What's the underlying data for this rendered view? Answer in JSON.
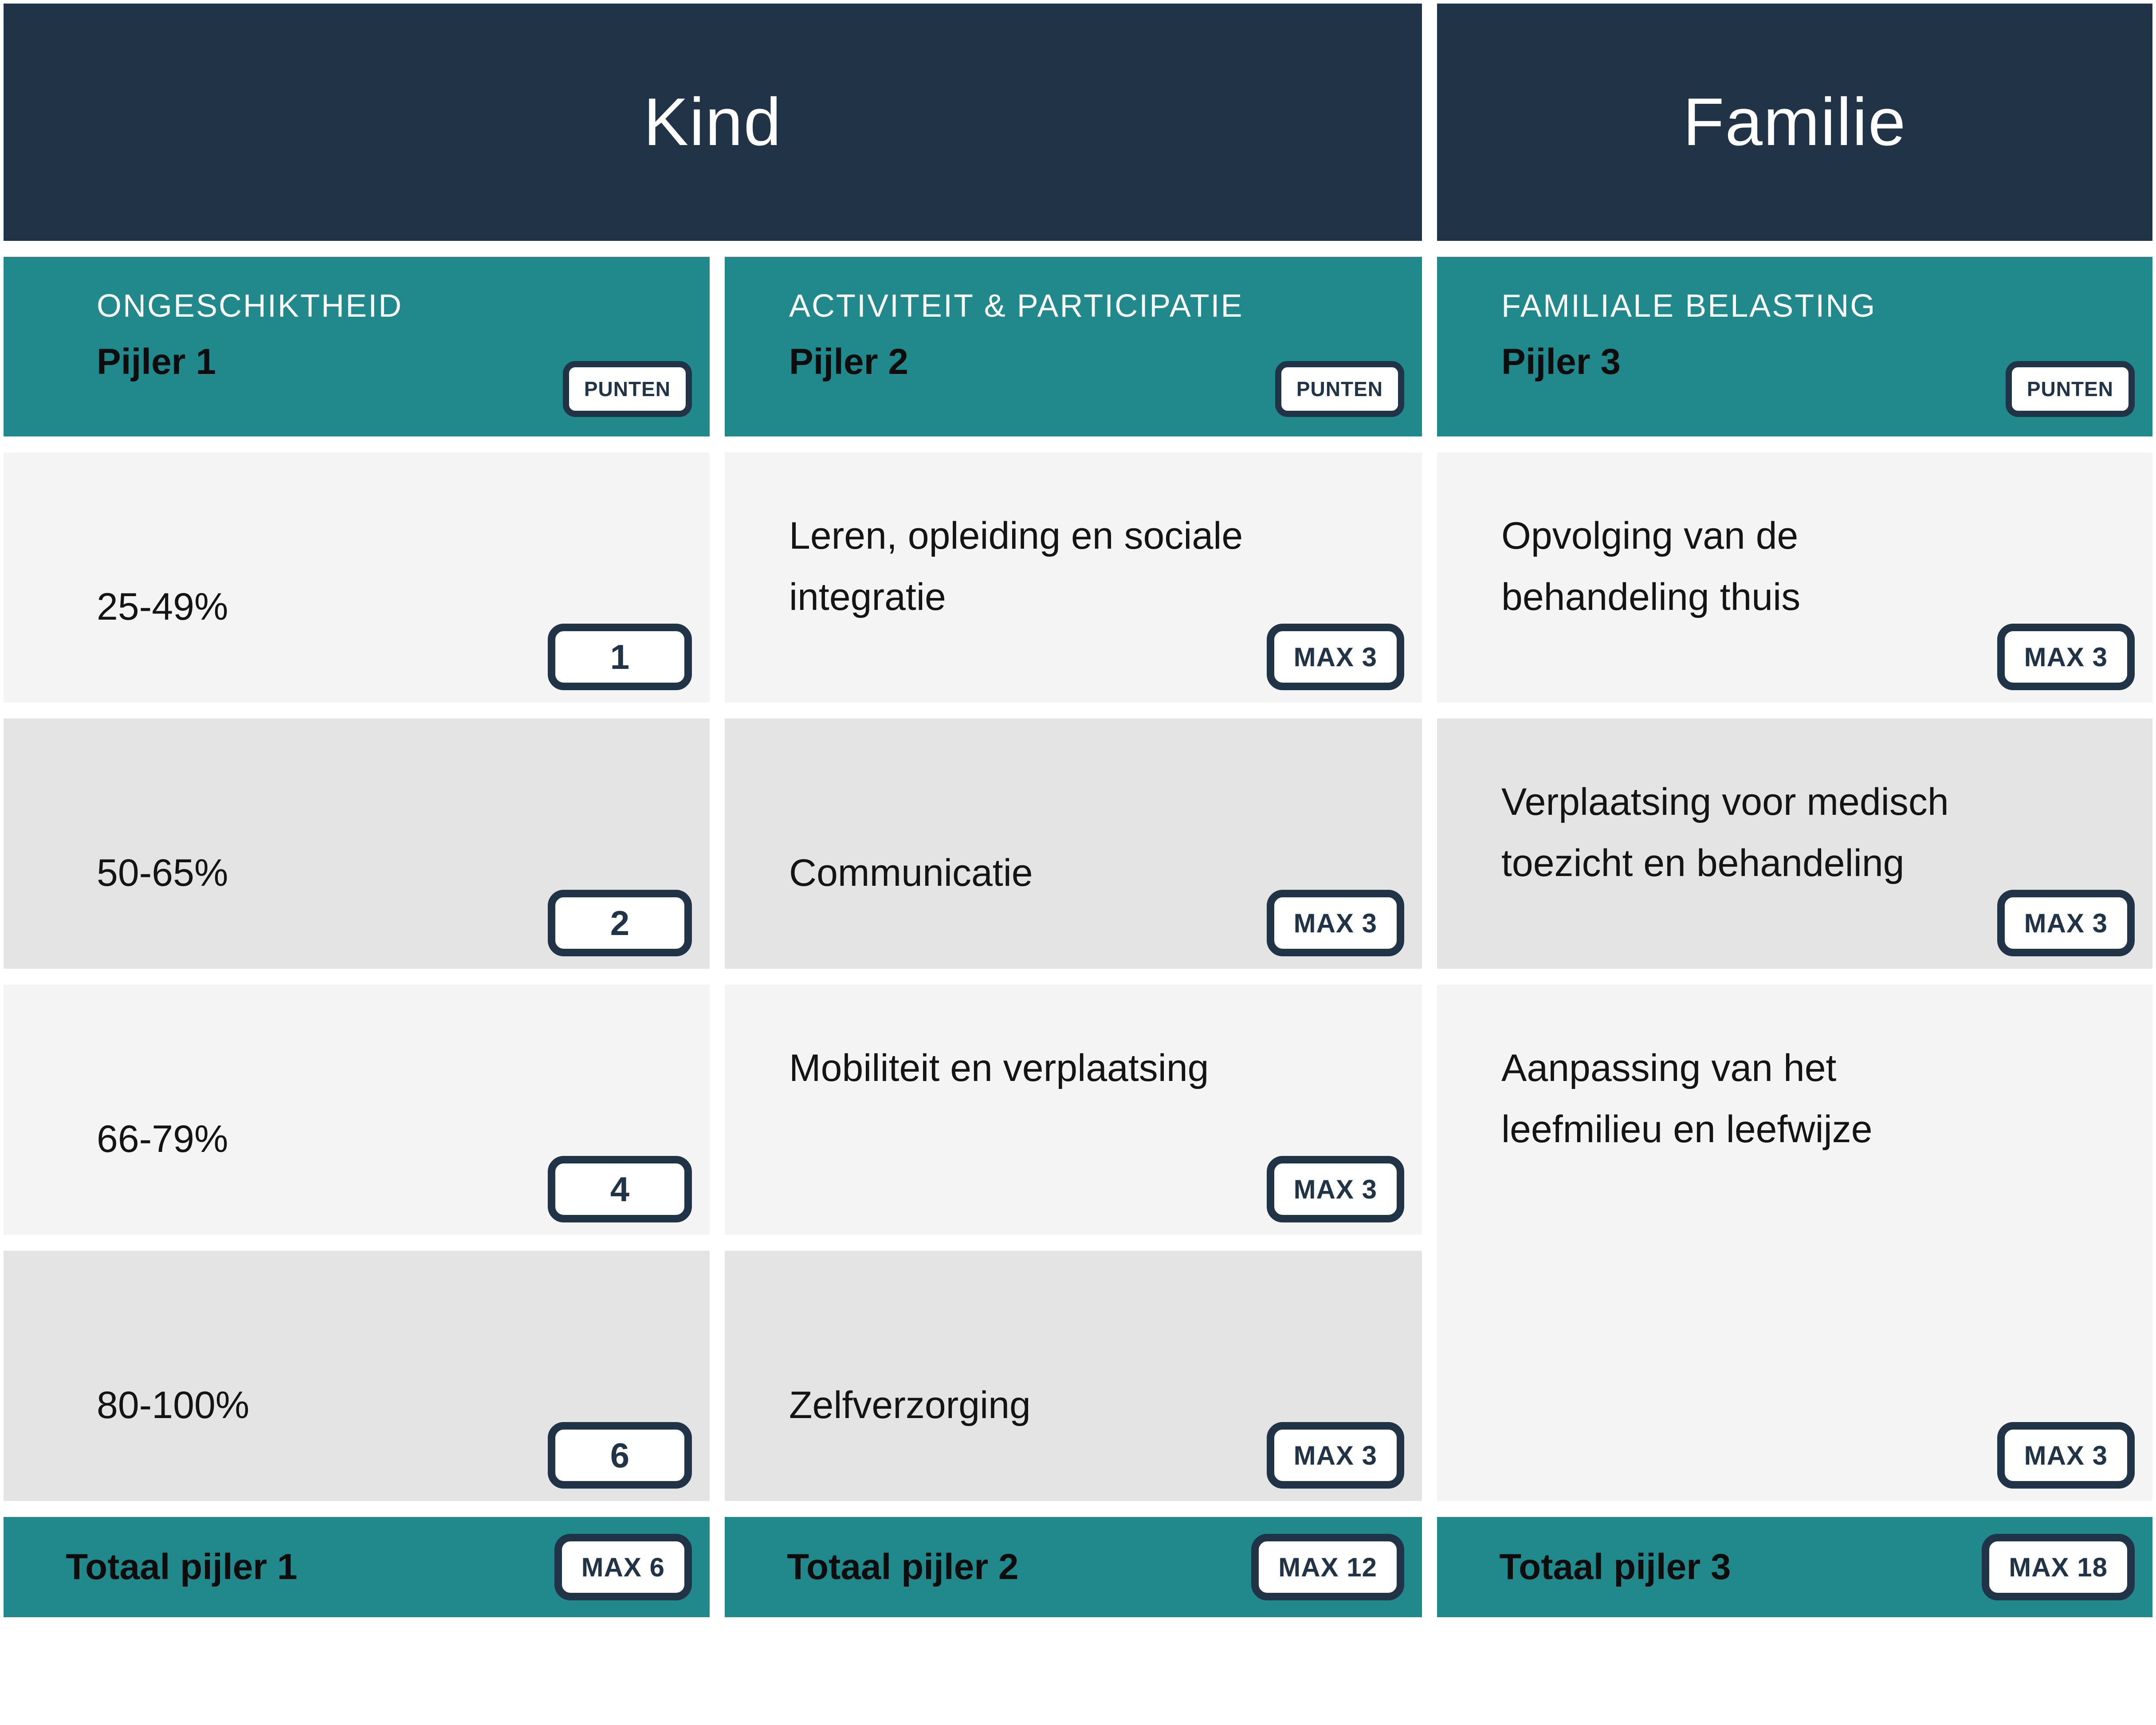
{
  "colors": {
    "navy": "#213447",
    "teal": "#21898c",
    "row_light": "#f4f4f4",
    "row_dark": "#e4e4e4",
    "white": "#ffffff"
  },
  "headers": {
    "kind": "Kind",
    "familie": "Familie"
  },
  "pillars": [
    {
      "eyebrow": "ONGESCHIKTHEID",
      "title": "Pijler 1",
      "punten_label": "PUNTEN",
      "rows": [
        {
          "text": "25-49%",
          "badge": "1"
        },
        {
          "text": "50-65%",
          "badge": "2"
        },
        {
          "text": "66-79%",
          "badge": "4"
        },
        {
          "text": "80-100%",
          "badge": "6"
        }
      ],
      "total": {
        "label": "Totaal pijler 1",
        "badge": "MAX 6"
      }
    },
    {
      "eyebrow": "ACTIVITEIT & PARTICIPATIE",
      "title": "Pijler 2",
      "punten_label": "PUNTEN",
      "rows": [
        {
          "text": "Leren, opleiding en sociale integratie",
          "badge": "MAX 3"
        },
        {
          "text": "Communicatie",
          "badge": "MAX 3"
        },
        {
          "text": "Mobiliteit en verplaatsing",
          "badge": "MAX 3"
        },
        {
          "text": "Zelfverzorging",
          "badge": "MAX 3"
        }
      ],
      "total": {
        "label": "Totaal pijler 2",
        "badge": "MAX 12"
      }
    },
    {
      "eyebrow": "FAMILIALE BELASTING",
      "title": "Pijler 3",
      "punten_label": "PUNTEN",
      "rows": [
        {
          "text": "Opvolging van de behandeling thuis",
          "badge": "MAX 3"
        },
        {
          "text": "Verplaatsing voor medisch toezicht en behandeling",
          "badge": "MAX 3"
        },
        {
          "text": "Aanpassing van het leefmilieu en leefwijze",
          "badge": "MAX 3"
        }
      ],
      "total": {
        "label": "Totaal pijler 3",
        "badge": "MAX 18"
      }
    }
  ]
}
